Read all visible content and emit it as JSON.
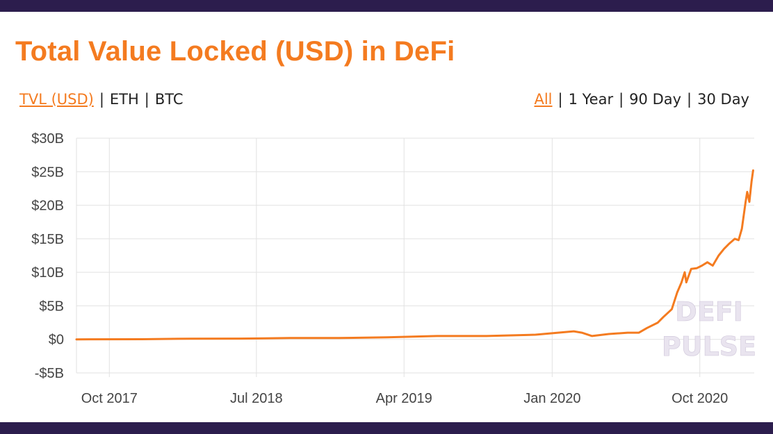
{
  "header": {
    "title": "Total Value Locked (USD) in DeFi",
    "metric_options": [
      "TVL (USD)",
      "ETH",
      "BTC"
    ],
    "metric_selected": "TVL (USD)",
    "range_options": [
      "All",
      "1 Year",
      "90 Day",
      "30 Day"
    ],
    "range_selected": "All"
  },
  "watermark": {
    "line1": "DEFI",
    "line2": "PULSE"
  },
  "colors": {
    "accent": "#f47b20",
    "frame": "#2c1d4d",
    "grid": "#e2e2e2",
    "axis_text": "#444444",
    "watermark": "#e9e4ef"
  },
  "chart_data": {
    "type": "line",
    "title": "Total Value Locked (USD) in DeFi",
    "xlabel": "",
    "ylabel": "",
    "x_tick_labels": [
      "Oct 2017",
      "Jul 2018",
      "Apr 2019",
      "Jan 2020",
      "Oct 2020"
    ],
    "x_ticks": [
      "2017-10-01",
      "2018-07-01",
      "2019-04-01",
      "2020-01-01",
      "2020-10-01"
    ],
    "y_tick_labels": [
      "-$5B",
      "$0",
      "$5B",
      "$10B",
      "$15B",
      "$20B",
      "$25B",
      "$30B"
    ],
    "y_ticks": [
      -5,
      0,
      5,
      10,
      15,
      20,
      25,
      30
    ],
    "y_unit": "billion USD",
    "ylim": [
      -5,
      30
    ],
    "xlim": [
      "2017-08-01",
      "2021-01-10"
    ],
    "grid": true,
    "legend": "none",
    "series": [
      {
        "color": "#f47b20",
        "points": [
          [
            "2017-08-01",
            0.0
          ],
          [
            "2017-12-01",
            0.02
          ],
          [
            "2018-03-01",
            0.1
          ],
          [
            "2018-06-01",
            0.12
          ],
          [
            "2018-09-01",
            0.2
          ],
          [
            "2018-12-01",
            0.2
          ],
          [
            "2019-03-01",
            0.3
          ],
          [
            "2019-06-01",
            0.5
          ],
          [
            "2019-09-01",
            0.5
          ],
          [
            "2019-12-01",
            0.7
          ],
          [
            "2020-02-10",
            1.2
          ],
          [
            "2020-02-25",
            1.0
          ],
          [
            "2020-03-15",
            0.5
          ],
          [
            "2020-04-15",
            0.8
          ],
          [
            "2020-05-20",
            1.0
          ],
          [
            "2020-06-10",
            1.0
          ],
          [
            "2020-06-25",
            1.7
          ],
          [
            "2020-07-15",
            2.5
          ],
          [
            "2020-07-25",
            3.3
          ],
          [
            "2020-08-10",
            4.5
          ],
          [
            "2020-08-20",
            7.0
          ],
          [
            "2020-08-28",
            8.5
          ],
          [
            "2020-09-03",
            10.0
          ],
          [
            "2020-09-06",
            8.5
          ],
          [
            "2020-09-15",
            10.5
          ],
          [
            "2020-09-25",
            10.6
          ],
          [
            "2020-10-05",
            11.0
          ],
          [
            "2020-10-15",
            11.5
          ],
          [
            "2020-10-25",
            11.0
          ],
          [
            "2020-11-05",
            12.5
          ],
          [
            "2020-11-15",
            13.5
          ],
          [
            "2020-11-25",
            14.3
          ],
          [
            "2020-12-05",
            15.0
          ],
          [
            "2020-12-12",
            14.8
          ],
          [
            "2020-12-18",
            16.5
          ],
          [
            "2020-12-25",
            20.5
          ],
          [
            "2020-12-28",
            22.0
          ],
          [
            "2021-01-01",
            20.5
          ],
          [
            "2021-01-05",
            23.5
          ],
          [
            "2021-01-08",
            25.2
          ]
        ]
      }
    ]
  }
}
